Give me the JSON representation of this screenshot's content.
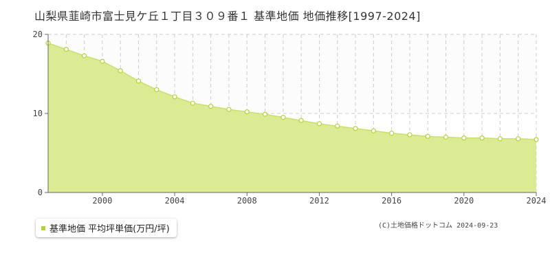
{
  "chart_data": {
    "type": "area",
    "title": "山梨県韮崎市富士見ケ丘１丁目３０９番１ 基準地価 地価推移[1997-2024]",
    "series": [
      {
        "name": "基準地価 平均坪単価(万円/坪)",
        "x": [
          1997,
          1998,
          1999,
          2000,
          2001,
          2002,
          2003,
          2004,
          2005,
          2006,
          2007,
          2008,
          2009,
          2010,
          2011,
          2012,
          2013,
          2014,
          2015,
          2016,
          2017,
          2018,
          2019,
          2020,
          2021,
          2022,
          2023,
          2024
        ],
        "values": [
          18.9,
          18.1,
          17.3,
          16.6,
          15.4,
          14.1,
          13.0,
          12.1,
          11.3,
          10.9,
          10.5,
          10.2,
          9.9,
          9.5,
          9.1,
          8.7,
          8.4,
          8.1,
          7.8,
          7.5,
          7.3,
          7.1,
          7.0,
          6.9,
          6.9,
          6.8,
          6.8,
          6.7
        ]
      }
    ],
    "xlim": [
      1997,
      2024
    ],
    "ylim": [
      0,
      20
    ],
    "x_ticks": [
      "2000",
      "2004",
      "2008",
      "2012",
      "2016",
      "2020",
      "2024"
    ],
    "y_ticks": [
      "0",
      "10",
      "20"
    ],
    "grid": true,
    "fill_color": "#dbeb94",
    "line_color": "#c8e070",
    "marker_fill": "#ffffff",
    "marker_stroke": "#b3d334"
  },
  "legend": {
    "label": "基準地価 平均坪単価(万円/坪)",
    "swatch_color": "#b3d334"
  },
  "copyright": "(C)土地価格ドットコム 2024-09-23"
}
